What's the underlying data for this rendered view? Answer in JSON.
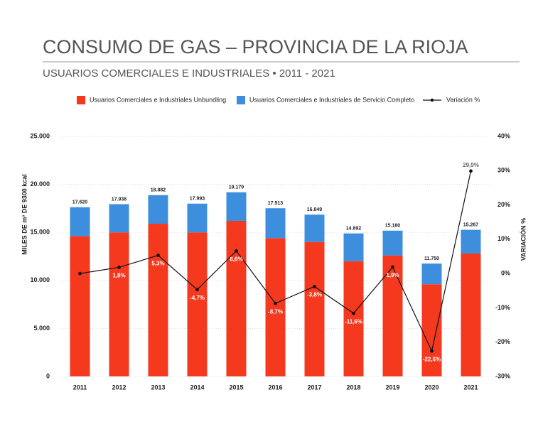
{
  "chart_data": {
    "type": "bar_line",
    "title": "CONSUMO DE GAS – PROVINCIA DE LA RIOJA",
    "subtitle": "USUARIOS COMERCIALES E INDUSTRIALES • 2011 - 2021",
    "y_label": "MILES DE m³ DE 9300 kcal",
    "y2_label": "VARIACIÓN %",
    "categories": [
      "2011",
      "2012",
      "2013",
      "2014",
      "2015",
      "2016",
      "2017",
      "2018",
      "2019",
      "2020",
      "2021"
    ],
    "series": [
      {
        "name": "Usuarios Comerciales e Industriales Unbundling",
        "color": "#f4391f",
        "values": [
          14600,
          15000,
          15900,
          15000,
          16200,
          14400,
          14000,
          12000,
          12600,
          9600,
          12800
        ]
      },
      {
        "name": "Usuarios Comerciales e Industriales de Servicio Completo",
        "color": "#3d8fdd",
        "values": [
          3020,
          2938,
          2982,
          2993,
          2979,
          3113,
          2849,
          2892,
          2580,
          2150,
          2467
        ]
      },
      {
        "name": "Variación %",
        "color": "#111111",
        "axis": "y2",
        "values": [
          0,
          1.8,
          5.3,
          -4.7,
          6.6,
          -8.7,
          -3.8,
          -11.6,
          1.9,
          -22.6,
          29.9
        ],
        "value_labels": [
          null,
          "1,8%",
          "5,3%",
          "-4,7%",
          "6,6%",
          "-8,7%",
          "-3,8%",
          "-11,6%",
          "1,9%",
          "-22,6%",
          "29,9%"
        ]
      }
    ],
    "totals": [
      17620,
      17938,
      18882,
      17993,
      19179,
      17513,
      16849,
      14892,
      15180,
      11750,
      15267
    ],
    "total_labels": [
      "17.620",
      "17.938",
      "18.882",
      "17.993",
      "19.179",
      "17.513",
      "16.849",
      "14.892",
      "15.180",
      "11.750",
      "15.267"
    ],
    "ylim": [
      0,
      25000
    ],
    "yticks": [
      0,
      {
        "value": 5000,
        "label": "5.000"
      },
      {
        "value": 10000,
        "label": "10.000"
      },
      {
        "value": 15000,
        "label": "15.000"
      },
      {
        "value": 20000,
        "label": "20.000"
      },
      {
        "value": 25000,
        "label": "25.000"
      }
    ],
    "y2lim": [
      -30,
      40
    ],
    "y2ticks": [
      {
        "value": -30,
        "label": "-30%"
      },
      {
        "value": -20,
        "label": "-20%"
      },
      {
        "value": -10,
        "label": "-10%"
      },
      {
        "value": 0,
        "label": "0%"
      },
      {
        "value": 10,
        "label": "10%"
      },
      {
        "value": 20,
        "label": "20%"
      },
      {
        "value": 30,
        "label": "30%"
      },
      {
        "value": 40,
        "label": "40%"
      }
    ],
    "grid": true
  }
}
